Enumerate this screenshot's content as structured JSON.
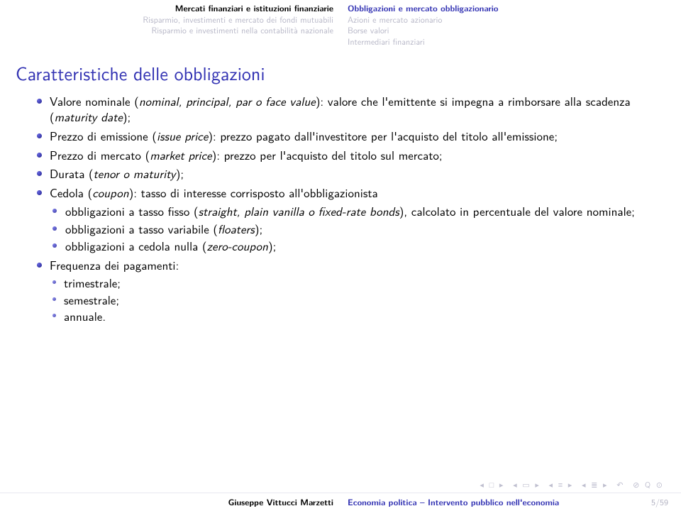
{
  "header": {
    "left": {
      "title": "Mercati finanziari e istituzioni finanziarie",
      "sub1": "Risparmio, investimenti e mercato dei fondi mutuabili",
      "sub2": "Risparmio e investimenti nella contabilità nazionale"
    },
    "right": {
      "active": "Obbligazioni e mercato obbligazionario",
      "sub1": "Azioni e mercato azionario",
      "sub2": "Borse valori",
      "sub3": "Intermediari finanziari"
    }
  },
  "frametitle": "Caratteristiche delle obbligazioni",
  "bullets": {
    "b1_pre": "Valore nominale (",
    "b1_it": "nominal, principal, par o face value",
    "b1_post": "): valore che l'emittente si impegna a rimborsare alla scadenza (",
    "b1_it2": "maturity date",
    "b1_post2": ");",
    "b2_pre": "Prezzo di emissione (",
    "b2_it": "issue price",
    "b2_post": "): prezzo pagato dall'investitore per l'acquisto del titolo all'emissione;",
    "b3_pre": "Prezzo di mercato (",
    "b3_it": "market price",
    "b3_post": "): prezzo per l'acquisto del titolo sul mercato;",
    "b4_pre": "Durata (",
    "b4_it": "tenor o maturity",
    "b4_post": ");",
    "b5_pre": "Cedola (",
    "b5_it": "coupon",
    "b5_post": "): tasso di interesse corrisposto all'obbligazionista",
    "b5s1_pre": "obbligazioni a tasso fisso (",
    "b5s1_it": "straight, plain vanilla o fixed-rate bonds",
    "b5s1_post": "), calcolato in percentuale del valore nominale;",
    "b5s2_pre": "obbligazioni a tasso variabile (",
    "b5s2_it": "floaters",
    "b5s2_post": ");",
    "b5s3_pre": "obbligazioni a cedola nulla (",
    "b5s3_it": "zero-coupon",
    "b5s3_post": ");",
    "b6": "Frequenza dei pagamenti:",
    "b6s1": "trimestrale;",
    "b6s2": "semestrale;",
    "b6s3": "annuale."
  },
  "footer": {
    "author": "Giuseppe Vittucci Marzetti",
    "title": "Economia politica – Intervento pubblico nell'economia",
    "page": "5/59"
  }
}
